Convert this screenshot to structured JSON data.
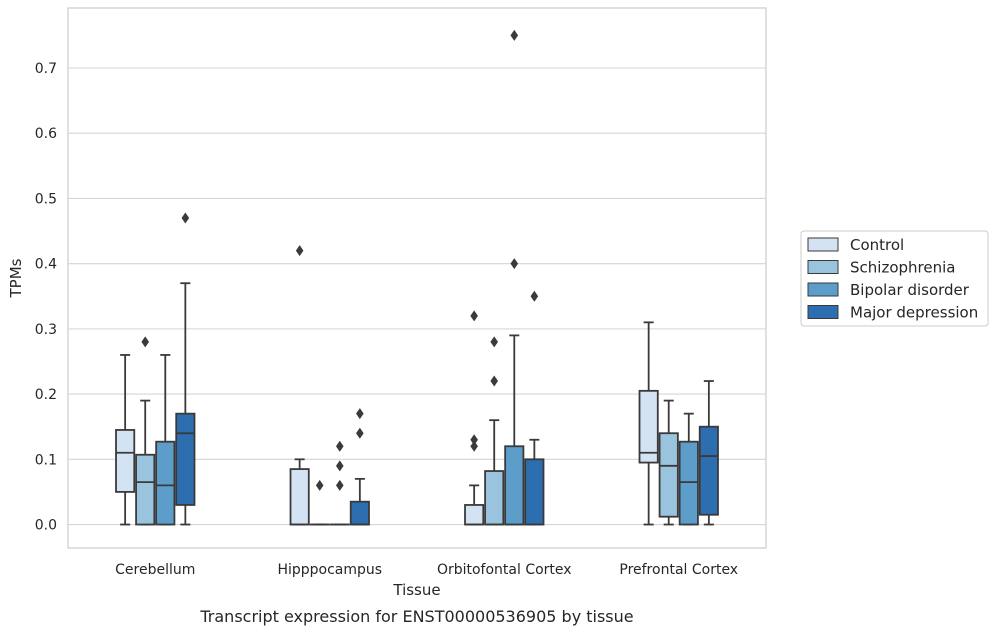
{
  "caption": "Transcript expression for ENST00000536905 by tissue",
  "chart_data": {
    "type": "box",
    "xlabel": "Tissue",
    "ylabel": "TPMs",
    "ylim": [
      -0.036,
      0.792
    ],
    "yticks": [
      0.0,
      0.1,
      0.2,
      0.3,
      0.4,
      0.5,
      0.6,
      0.7
    ],
    "ytick_labels": [
      "0.0",
      "0.1",
      "0.2",
      "0.3",
      "0.4",
      "0.5",
      "0.6",
      "0.7"
    ],
    "grid": "horizontal",
    "legend_position": "right, outside plot",
    "categories": [
      "Cerebellum",
      "Hipppocampus",
      "Orbitofontal Cortex",
      "Prefrontal Cortex"
    ],
    "series": [
      {
        "name": "Control",
        "color": "#d3e3f3",
        "boxes": [
          {
            "whislo": 0.0,
            "q1": 0.05,
            "med": 0.11,
            "q3": 0.145,
            "whishi": 0.26,
            "fliers": []
          },
          {
            "whislo": 0.0,
            "q1": 0.0,
            "med": 0.0,
            "q3": 0.085,
            "whishi": 0.1,
            "fliers": [
              0.42
            ]
          },
          {
            "whislo": 0.0,
            "q1": 0.0,
            "med": 0.0,
            "q3": 0.03,
            "whishi": 0.06,
            "fliers": [
              0.12,
              0.13,
              0.32
            ]
          },
          {
            "whislo": 0.0,
            "q1": 0.095,
            "med": 0.11,
            "q3": 0.205,
            "whishi": 0.31,
            "fliers": []
          }
        ]
      },
      {
        "name": "Schizophrenia",
        "color": "#9ac3de",
        "boxes": [
          {
            "whislo": 0.0,
            "q1": 0.0,
            "med": 0.065,
            "q3": 0.107,
            "whishi": 0.19,
            "fliers": [
              0.28
            ]
          },
          {
            "whislo": 0.0,
            "q1": 0.0,
            "med": 0.0,
            "q3": 0.0,
            "whishi": 0.0,
            "fliers": [
              0.06
            ]
          },
          {
            "whislo": 0.0,
            "q1": 0.0,
            "med": 0.0,
            "q3": 0.082,
            "whishi": 0.16,
            "fliers": [
              0.22,
              0.28
            ]
          },
          {
            "whislo": 0.0,
            "q1": 0.012,
            "med": 0.09,
            "q3": 0.14,
            "whishi": 0.19,
            "fliers": []
          }
        ]
      },
      {
        "name": "Bipolar disorder",
        "color": "#5c9ec9",
        "boxes": [
          {
            "whislo": 0.0,
            "q1": 0.0,
            "med": 0.06,
            "q3": 0.127,
            "whishi": 0.26,
            "fliers": []
          },
          {
            "whislo": 0.0,
            "q1": 0.0,
            "med": 0.0,
            "q3": 0.0,
            "whishi": 0.0,
            "fliers": [
              0.06,
              0.09,
              0.12
            ]
          },
          {
            "whislo": 0.0,
            "q1": 0.0,
            "med": 0.0,
            "q3": 0.12,
            "whishi": 0.29,
            "fliers": [
              0.4,
              0.75
            ]
          },
          {
            "whislo": 0.0,
            "q1": 0.0,
            "med": 0.065,
            "q3": 0.127,
            "whishi": 0.17,
            "fliers": []
          }
        ]
      },
      {
        "name": "Major depression",
        "color": "#2c6eaf",
        "boxes": [
          {
            "whislo": 0.0,
            "q1": 0.03,
            "med": 0.14,
            "q3": 0.17,
            "whishi": 0.37,
            "fliers": [
              0.47
            ]
          },
          {
            "whislo": 0.0,
            "q1": 0.0,
            "med": 0.0,
            "q3": 0.035,
            "whishi": 0.07,
            "fliers": [
              0.14,
              0.17
            ]
          },
          {
            "whislo": 0.0,
            "q1": 0.0,
            "med": 0.0,
            "q3": 0.1,
            "whishi": 0.13,
            "fliers": [
              0.35
            ]
          },
          {
            "whislo": 0.0,
            "q1": 0.015,
            "med": 0.105,
            "q3": 0.15,
            "whishi": 0.22,
            "fliers": []
          }
        ]
      }
    ]
  }
}
